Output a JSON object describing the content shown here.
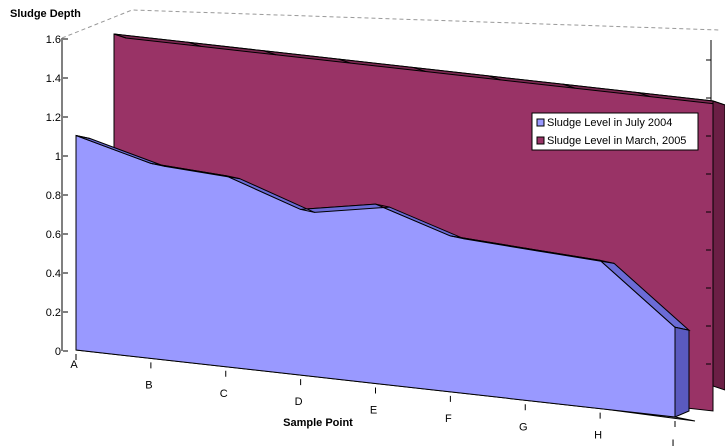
{
  "chart_data": {
    "type": "area",
    "subtype": "3d-area",
    "title": "",
    "xlabel": "Sample Point",
    "ylabel": "Sludge Depth",
    "categories": [
      "A",
      "B",
      "C",
      "D",
      "E",
      "F",
      "G",
      "H",
      "I"
    ],
    "y_ticks": [
      "0",
      "0.2",
      "0.4",
      "0.6",
      "0.8",
      "1",
      "1.2",
      "1.4",
      "1.6"
    ],
    "ylim": [
      0,
      1.6
    ],
    "grid": false,
    "legend_position": "right",
    "series": [
      {
        "name": "Sludge Level in July 2004",
        "color": "#9999ff",
        "values": [
          1.1,
          1.0,
          0.98,
          0.85,
          0.92,
          0.8,
          0.78,
          0.76,
          0.46
        ]
      },
      {
        "name": "Sludge Level in March, 2005",
        "color": "#993366",
        "values": [
          1.6,
          1.6,
          1.6,
          1.6,
          1.6,
          1.6,
          1.6,
          1.6,
          1.6
        ]
      }
    ]
  }
}
